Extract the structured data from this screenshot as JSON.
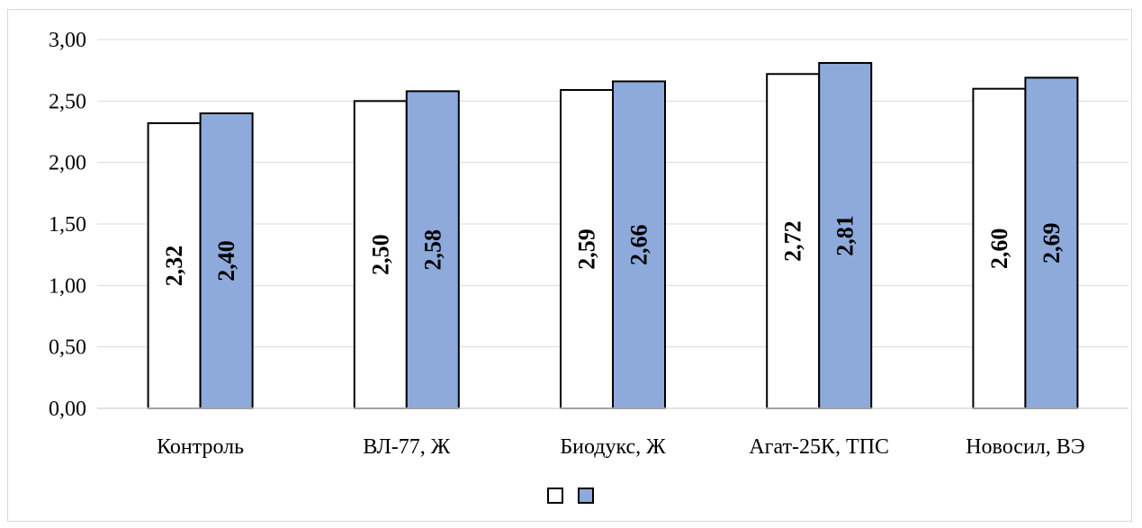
{
  "chart_data": {
    "type": "bar",
    "categories": [
      "Контроль",
      "ВЛ-77, Ж",
      "Биодукс, Ж",
      "Агат-25К, ТПС",
      "Новосил, ВЭ"
    ],
    "series": [
      {
        "values": [
          2.32,
          2.5,
          2.59,
          2.72,
          2.6
        ],
        "labels": [
          "2,32",
          "2,50",
          "2,59",
          "2,72",
          "2,60"
        ],
        "color": "#ffffff"
      },
      {
        "values": [
          2.4,
          2.58,
          2.66,
          2.81,
          2.69
        ],
        "labels": [
          "2,40",
          "2,58",
          "2,66",
          "2,81",
          "2,69"
        ],
        "color": "#8eaadb"
      }
    ],
    "yticks": [
      "0,00",
      "0,50",
      "1,00",
      "1,50",
      "2,00",
      "2,50",
      "3,00"
    ],
    "ylim": [
      0,
      3
    ],
    "grid": true,
    "legend_position": "bottom",
    "border_color": "#000000",
    "grid_color": "#d9d9d9"
  }
}
